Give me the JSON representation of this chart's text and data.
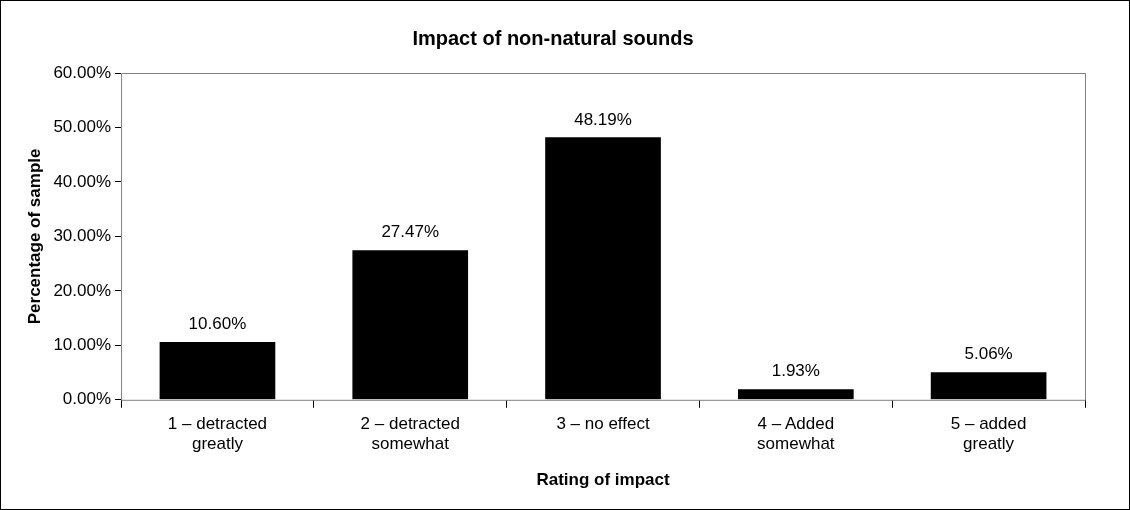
{
  "chart_data": {
    "type": "bar",
    "title": "Impact of non-natural sounds",
    "xlabel": "Rating of impact",
    "ylabel": "Percentage of sample",
    "categories": [
      "1 – detracted greatly",
      "2 – detracted somewhat",
      "3 – no effect",
      "4 – Added somewhat",
      "5 – added greatly"
    ],
    "values": [
      10.6,
      27.47,
      48.19,
      1.93,
      5.06
    ],
    "value_labels": [
      "10.60%",
      "27.47%",
      "48.19%",
      "1.93%",
      "5.06%"
    ],
    "color": "#000000",
    "ylim": [
      0,
      60
    ],
    "yticks": [
      {
        "value": 0,
        "label": "0.00%"
      },
      {
        "value": 10,
        "label": "10.00%"
      },
      {
        "value": 20,
        "label": "20.00%"
      },
      {
        "value": 30,
        "label": "30.00%"
      },
      {
        "value": 40,
        "label": "40.00%"
      },
      {
        "value": 50,
        "label": "50.00%"
      },
      {
        "value": 60,
        "label": "60.00%"
      }
    ],
    "grid": false,
    "legend": false
  }
}
